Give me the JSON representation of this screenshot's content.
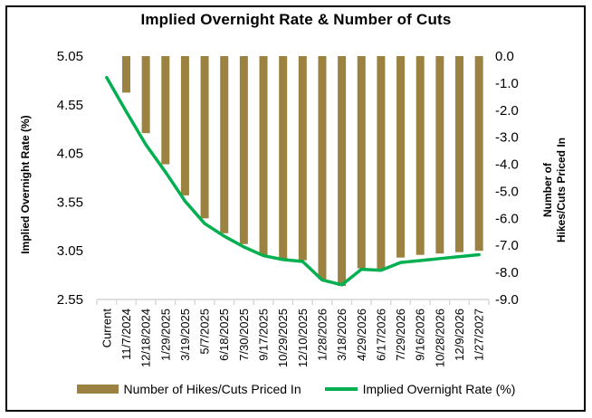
{
  "chart_data": {
    "type": "combo",
    "title": "Implied Overnight Rate & Number of Cuts",
    "categories": [
      "Current",
      "11/7/2024",
      "12/18/2024",
      "1/29/2025",
      "3/19/2025",
      "5/7/2025",
      "6/18/2025",
      "7/30/2025",
      "9/17/2025",
      "10/29/2025",
      "12/10/2025",
      "1/28/2026",
      "3/18/2026",
      "4/29/2026",
      "6/17/2026",
      "7/29/2026",
      "9/16/2026",
      "10/28/2026",
      "12/9/2026",
      "1/27/2027"
    ],
    "series": [
      {
        "name": "Number of Hikes/Cuts Priced In",
        "type": "bar",
        "axis": "right",
        "color": "#9B8240",
        "values": [
          null,
          -1.35,
          -2.85,
          -4.0,
          -5.15,
          -6.0,
          -6.55,
          -6.95,
          -7.35,
          -7.5,
          -7.55,
          -8.25,
          -8.5,
          -7.85,
          -7.9,
          -7.45,
          -7.35,
          -7.3,
          -7.25,
          -7.2
        ]
      },
      {
        "name": "Implied Overnight Rate (%)",
        "type": "line",
        "axis": "left",
        "color": "#00B050",
        "values": [
          4.83,
          4.48,
          4.14,
          3.86,
          3.56,
          3.33,
          3.2,
          3.09,
          3.0,
          2.96,
          2.94,
          2.75,
          2.7,
          2.86,
          2.85,
          2.93,
          2.95,
          2.97,
          2.99,
          3.01
        ]
      }
    ],
    "left_axis": {
      "label": "Implied Overnight Rate (%)",
      "min": 2.55,
      "max": 5.05,
      "ticks": [
        "5.05",
        "4.55",
        "4.05",
        "3.55",
        "3.05",
        "2.55"
      ]
    },
    "right_axis": {
      "label_line1": "Number of",
      "label_line2": "Hikes/Cuts Priced In",
      "min": -9.0,
      "max": 0.0,
      "ticks": [
        "0.0",
        "-1.0",
        "-2.0",
        "-3.0",
        "-4.0",
        "-5.0",
        "-6.0",
        "-7.0",
        "-8.0",
        "-9.0"
      ]
    },
    "grid": false,
    "legend_position": "bottom",
    "axis_color": "#D9D9D9",
    "text_color": "#000000"
  },
  "legend": {
    "items": [
      {
        "label": "Number of Hikes/Cuts Priced In",
        "swatch": "bar",
        "color": "#9B8240"
      },
      {
        "label": "Implied Overnight Rate (%)",
        "swatch": "line",
        "color": "#00B050"
      }
    ]
  }
}
